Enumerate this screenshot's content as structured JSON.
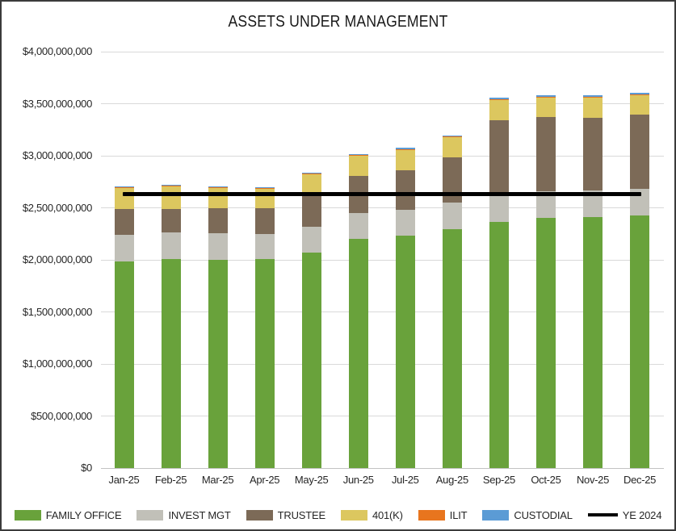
{
  "chart_data": {
    "type": "bar",
    "stacked": true,
    "title": "ASSETS UNDER MANAGEMENT",
    "categories": [
      "Jan-25",
      "Feb-25",
      "Mar-25",
      "Apr-25",
      "May-25",
      "Jun-25",
      "Jul-25",
      "Aug-25",
      "Sep-25",
      "Oct-25",
      "Nov-25",
      "Dec-25"
    ],
    "series": [
      {
        "name": "FAMILY OFFICE",
        "color": "#69A23B",
        "values": [
          1985000000,
          2010000000,
          2000000000,
          2005000000,
          2073000000,
          2205000000,
          2235000000,
          2294000000,
          2363000000,
          2400000000,
          2412000000,
          2427000000
        ]
      },
      {
        "name": "INVEST MGT",
        "color": "#C1C0B8",
        "values": [
          255000000,
          250000000,
          253000000,
          240000000,
          245000000,
          245000000,
          248000000,
          260000000,
          264000000,
          258000000,
          254000000,
          256000000
        ]
      },
      {
        "name": "TRUSTEE",
        "color": "#7C6A57",
        "values": [
          250000000,
          230000000,
          240000000,
          250000000,
          324000000,
          356000000,
          380000000,
          434000000,
          716000000,
          712000000,
          700000000,
          714000000
        ]
      },
      {
        "name": "401(K)",
        "color": "#DCC75F",
        "values": [
          200000000,
          212000000,
          198000000,
          188000000,
          182000000,
          192000000,
          196000000,
          192000000,
          194000000,
          188000000,
          192000000,
          185000000
        ]
      },
      {
        "name": "ILIT",
        "color": "#E8751E",
        "values": [
          6000000,
          8000000,
          8000000,
          8000000,
          6000000,
          6000000,
          6000000,
          6000000,
          8000000,
          10000000,
          10000000,
          10000000
        ]
      },
      {
        "name": "CUSTODIAL",
        "color": "#5B9BD5",
        "values": [
          8000000,
          8000000,
          8000000,
          8000000,
          8000000,
          10000000,
          10000000,
          10000000,
          10000000,
          10000000,
          10000000,
          10000000
        ]
      }
    ],
    "line_overlay": {
      "name": "YE 2024",
      "color": "#000000",
      "value": 2630000000
    },
    "ylim": [
      0,
      4000000000
    ],
    "y_axis_ticks": [
      {
        "value": 0,
        "label": "$0"
      },
      {
        "value": 500000000,
        "label": "$500,000,000"
      },
      {
        "value": 1000000000,
        "label": "$1,000,000,000"
      },
      {
        "value": 1500000000,
        "label": "$1,500,000,000"
      },
      {
        "value": 2000000000,
        "label": "$2,000,000,000"
      },
      {
        "value": 2500000000,
        "label": "$2,500,000,000"
      },
      {
        "value": 3000000000,
        "label": "$3,000,000,000"
      },
      {
        "value": 3500000000,
        "label": "$3,500,000,000"
      },
      {
        "value": 4000000000,
        "label": "$4,000,000,000"
      }
    ],
    "grid": true,
    "legend_position": "bottom"
  }
}
